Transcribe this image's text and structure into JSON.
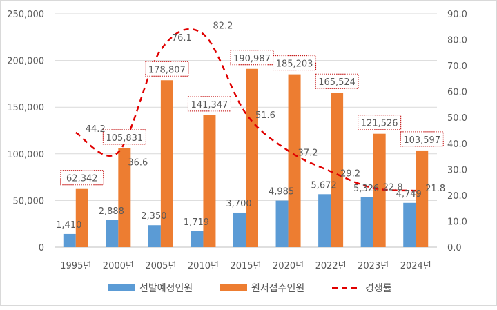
{
  "chart_data": {
    "type": "bar",
    "title": "",
    "categories": [
      "1995년",
      "2000년",
      "2005년",
      "2010년",
      "2015년",
      "2020년",
      "2022년",
      "2023년",
      "2024년"
    ],
    "series": [
      {
        "name": "선발예정인원",
        "kind": "bar",
        "axis": "left",
        "color": "#5b9bd5",
        "values": [
          1410,
          2888,
          2350,
          1719,
          3700,
          4985,
          5672,
          5326,
          4749
        ],
        "display_scale": 10,
        "labels": [
          "1,410",
          "2,888",
          "2,350",
          "1,719",
          "3,700",
          "4,985",
          "5,672",
          "5,326",
          "4,749"
        ]
      },
      {
        "name": "원서접수인원",
        "kind": "bar",
        "axis": "left",
        "color": "#ed7d31",
        "values": [
          62342,
          105831,
          178807,
          141347,
          190987,
          185203,
          165524,
          121526,
          103597
        ],
        "labels": [
          "62,342",
          "105,831",
          "178,807",
          "141,347",
          "190,987",
          "185,203",
          "165,524",
          "121,526",
          "103,597"
        ]
      },
      {
        "name": "경쟁률",
        "kind": "line",
        "axis": "right",
        "color": "#e00000",
        "style": "dashed-smooth",
        "values": [
          44.2,
          36.6,
          76.1,
          82.2,
          51.6,
          37.2,
          29.2,
          22.8,
          21.8
        ],
        "labels": [
          "44.2",
          "36.6",
          "76.1",
          "82.2",
          "51.6",
          "37.2",
          "29.2",
          "22.8",
          "21.8"
        ]
      }
    ],
    "ylim": [
      0,
      250000
    ],
    "yticks": [
      "0",
      "50,000",
      "100,000",
      "150,000",
      "200,000",
      "250,000"
    ],
    "y2lim": [
      0,
      90
    ],
    "y2ticks": [
      "0.0",
      "10.0",
      "20.0",
      "30.0",
      "40.0",
      "50.0",
      "60.0",
      "70.0",
      "80.0",
      "90.0"
    ],
    "xlabel": "",
    "ylabel": "",
    "y2label": "",
    "grid": true,
    "legend_position": "bottom",
    "legend": [
      "선발예정인원",
      "원서접수인원",
      "경쟁률"
    ]
  }
}
